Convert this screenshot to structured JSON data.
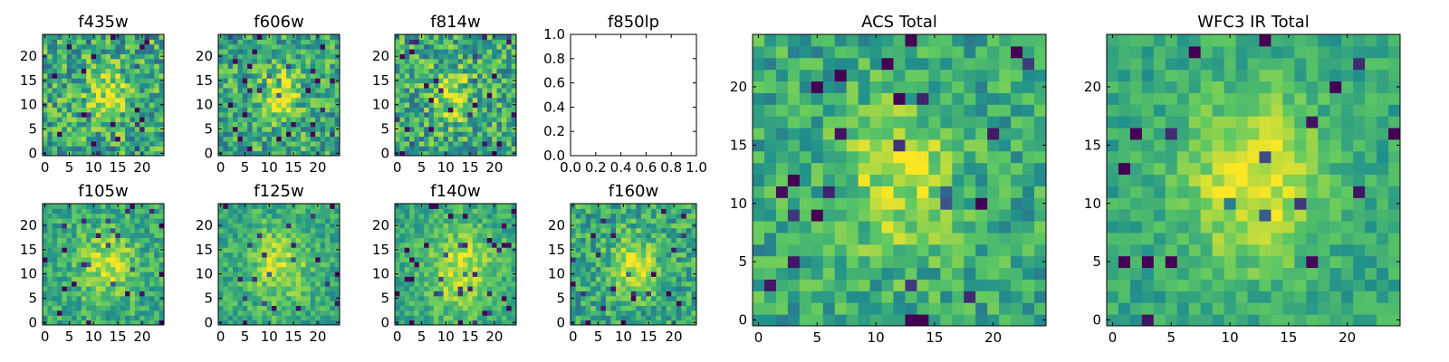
{
  "chart_data": [
    {
      "type": "heatmap",
      "title": "f435w",
      "size": 25,
      "seed": 11,
      "center": [
        13,
        12
      ],
      "blob": 0.32,
      "noise": 0.55,
      "spread": 3.0,
      "xticks": [
        0,
        5,
        10,
        15,
        20
      ],
      "yticks": [
        0,
        5,
        10,
        15,
        20
      ],
      "xlim": [
        -0.5,
        24.5
      ],
      "ylim": [
        -0.5,
        24.5
      ]
    },
    {
      "type": "heatmap",
      "title": "f606w",
      "size": 25,
      "seed": 23,
      "center": [
        12,
        12
      ],
      "blob": 0.35,
      "noise": 0.5,
      "spread": 3.0,
      "xticks": [
        0,
        5,
        10,
        15,
        20
      ],
      "yticks": [
        0,
        5,
        10,
        15,
        20
      ],
      "xlim": [
        -0.5,
        24.5
      ],
      "ylim": [
        -0.5,
        24.5
      ]
    },
    {
      "type": "heatmap",
      "title": "f814w",
      "size": 25,
      "seed": 37,
      "center": [
        11,
        12
      ],
      "blob": 0.3,
      "noise": 0.55,
      "spread": 3.0,
      "xticks": [
        0,
        5,
        10,
        15,
        20
      ],
      "yticks": [
        0,
        5,
        10,
        15,
        20
      ],
      "xlim": [
        -0.5,
        24.5
      ],
      "ylim": [
        -0.5,
        24.5
      ]
    },
    {
      "type": "empty",
      "title": "f850lp",
      "xticks": [
        0.0,
        0.2,
        0.4,
        0.6,
        0.8,
        1.0
      ],
      "yticks": [
        0.0,
        0.2,
        0.4,
        0.6,
        0.8,
        1.0
      ],
      "xtick_labels": [
        "0.0",
        "0.2",
        "0.4",
        "0.6",
        "0.8",
        "1.0"
      ],
      "ytick_labels": [
        "0.0",
        "0.2",
        "0.4",
        "0.6",
        "0.8",
        "1.0"
      ],
      "xlim": [
        0,
        1
      ],
      "ylim": [
        0,
        1
      ]
    },
    {
      "type": "heatmap",
      "title": "f105w",
      "size": 25,
      "seed": 41,
      "center": [
        13,
        12
      ],
      "blob": 0.3,
      "noise": 0.35,
      "spread": 4.0,
      "xticks": [
        0,
        5,
        10,
        15,
        20
      ],
      "yticks": [
        0,
        5,
        10,
        15,
        20
      ],
      "xlim": [
        -0.5,
        24.5
      ],
      "ylim": [
        -0.5,
        24.5
      ]
    },
    {
      "type": "heatmap",
      "title": "f125w",
      "size": 25,
      "seed": 53,
      "center": [
        12,
        12
      ],
      "blob": 0.28,
      "noise": 0.32,
      "spread": 4.5,
      "xticks": [
        0,
        5,
        10,
        15,
        20
      ],
      "yticks": [
        0,
        5,
        10,
        15,
        20
      ],
      "xlim": [
        -0.5,
        24.5
      ],
      "ylim": [
        -0.5,
        24.5
      ]
    },
    {
      "type": "heatmap",
      "title": "f140w",
      "size": 25,
      "seed": 67,
      "center": [
        13,
        11
      ],
      "blob": 0.3,
      "noise": 0.3,
      "spread": 5.0,
      "xticks": [
        0,
        5,
        10,
        15,
        20
      ],
      "yticks": [
        0,
        5,
        10,
        15,
        20
      ],
      "xlim": [
        -0.5,
        24.5
      ],
      "ylim": [
        -0.5,
        24.5
      ]
    },
    {
      "type": "heatmap",
      "title": "f160w",
      "size": 25,
      "seed": 79,
      "center": [
        12,
        12
      ],
      "blob": 0.38,
      "noise": 0.42,
      "spread": 3.0,
      "xticks": [
        0,
        5,
        10,
        15,
        20
      ],
      "yticks": [
        0,
        5,
        10,
        15,
        20
      ],
      "xlim": [
        -0.5,
        24.5
      ],
      "ylim": [
        -0.5,
        24.5
      ]
    },
    {
      "type": "heatmap",
      "title": "ACS Total",
      "size": 25,
      "seed": 97,
      "center": [
        12,
        12
      ],
      "blob": 0.3,
      "noise": 0.38,
      "spread": 3.5,
      "xticks": [
        0,
        5,
        10,
        15,
        20
      ],
      "yticks": [
        0,
        5,
        10,
        15,
        20
      ],
      "xlim": [
        -0.5,
        24.5
      ],
      "ylim": [
        -0.5,
        24.5
      ]
    },
    {
      "type": "heatmap",
      "title": "WFC3 IR Total",
      "size": 25,
      "seed": 103,
      "center": [
        12,
        12
      ],
      "blob": 0.38,
      "noise": 0.25,
      "spread": 4.0,
      "xticks": [
        0,
        5,
        10,
        15,
        20
      ],
      "yticks": [
        0,
        5,
        10,
        15,
        20
      ],
      "xlim": [
        -0.5,
        24.5
      ],
      "ylim": [
        -0.5,
        24.5
      ]
    }
  ],
  "colormap": [
    "#440154",
    "#3b528b",
    "#21918c",
    "#5ec962",
    "#fde725"
  ]
}
